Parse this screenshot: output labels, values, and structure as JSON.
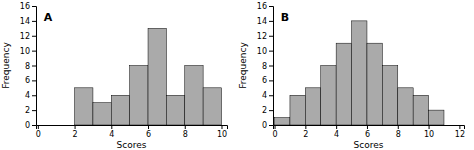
{
  "chart_data": [
    {
      "type": "histogram",
      "title": "A",
      "bins": [
        1,
        2,
        3,
        4,
        5,
        6,
        7,
        8,
        9,
        10
      ],
      "values": [
        0,
        5,
        3,
        4,
        8,
        13,
        4,
        8,
        5
      ],
      "color": "#aaaaaa",
      "xlim": [
        -0.1,
        10.3
      ],
      "ylim": [
        0,
        16
      ],
      "xticks": [
        0,
        2,
        4,
        6,
        8,
        10
      ],
      "yticks": [
        0,
        2,
        4,
        6,
        8,
        10,
        12,
        14,
        16
      ],
      "xlabel": "Scores",
      "ylabel": "Frequency"
    },
    {
      "type": "histogram",
      "title": "B",
      "bins": [
        0,
        1,
        2,
        3,
        4,
        5,
        6,
        7,
        8,
        9,
        10,
        11
      ],
      "values": [
        1,
        4,
        5,
        8,
        11,
        14,
        11,
        8,
        5,
        4,
        2
      ],
      "color": "#aaaaaa",
      "xlim": [
        -0.1,
        12.3
      ],
      "ylim": [
        0,
        16
      ],
      "xticks": [
        0,
        2,
        4,
        6,
        8,
        10,
        12
      ],
      "yticks": [
        0,
        2,
        4,
        6,
        8,
        10,
        12,
        14,
        16
      ],
      "xlabel": "Scores",
      "ylabel": "Frequency"
    }
  ]
}
